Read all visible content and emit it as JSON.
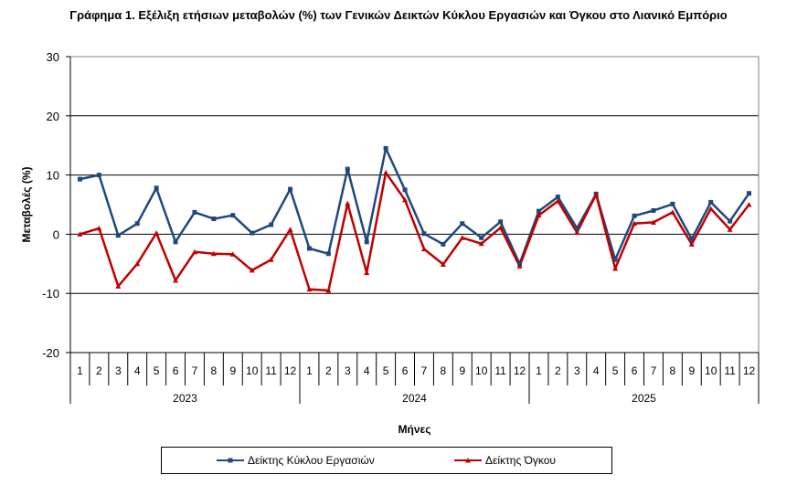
{
  "title": "Γράφημα 1. Εξέλιξη ετήσιων μεταβολών (%) των Γενικών Δεικτών Κύκλου Εργασιών και Όγκου στο Λιανικό Εμπόριο",
  "chart_data": {
    "type": "line",
    "xlabel": "Μήνες",
    "ylabel": "Μεταβολές (%)",
    "ylim": [
      -20,
      30
    ],
    "yticks": [
      -20,
      -10,
      0,
      10,
      20,
      30
    ],
    "grid": "horizontal",
    "legend_position": "bottom",
    "years": [
      "2023",
      "2024",
      "2025"
    ],
    "months": [
      "1",
      "2",
      "3",
      "4",
      "5",
      "6",
      "7",
      "8",
      "9",
      "10",
      "11",
      "12"
    ],
    "series": [
      {
        "name": "Δείκτης Κύκλου Εργασιών",
        "color": "#1f497d",
        "marker": "square",
        "values": [
          9.3,
          10.0,
          -0.2,
          1.8,
          7.8,
          -1.3,
          3.7,
          2.6,
          3.2,
          0.2,
          1.6,
          7.6,
          -2.4,
          -3.3,
          11.0,
          -1.3,
          14.5,
          7.5,
          0.1,
          -1.7,
          1.8,
          -0.6,
          2.1,
          -5.0,
          3.9,
          6.3,
          1.0,
          6.8,
          -4.3,
          3.1,
          4.0,
          5.1,
          -0.8,
          5.4,
          2.2,
          6.9
        ]
      },
      {
        "name": "Δείκτης Όγκου",
        "color": "#c00000",
        "marker": "triangle",
        "values": [
          0.0,
          1.0,
          -8.8,
          -5.0,
          0.2,
          -7.8,
          -3.0,
          -3.3,
          -3.4,
          -6.1,
          -4.3,
          0.8,
          -9.3,
          -9.5,
          5.2,
          -6.5,
          10.4,
          5.8,
          -2.5,
          -5.1,
          -0.6,
          -1.6,
          1.1,
          -5.4,
          3.2,
          5.6,
          0.3,
          6.7,
          -5.8,
          1.8,
          2.0,
          3.7,
          -1.7,
          4.3,
          0.8,
          5.0
        ]
      }
    ]
  }
}
